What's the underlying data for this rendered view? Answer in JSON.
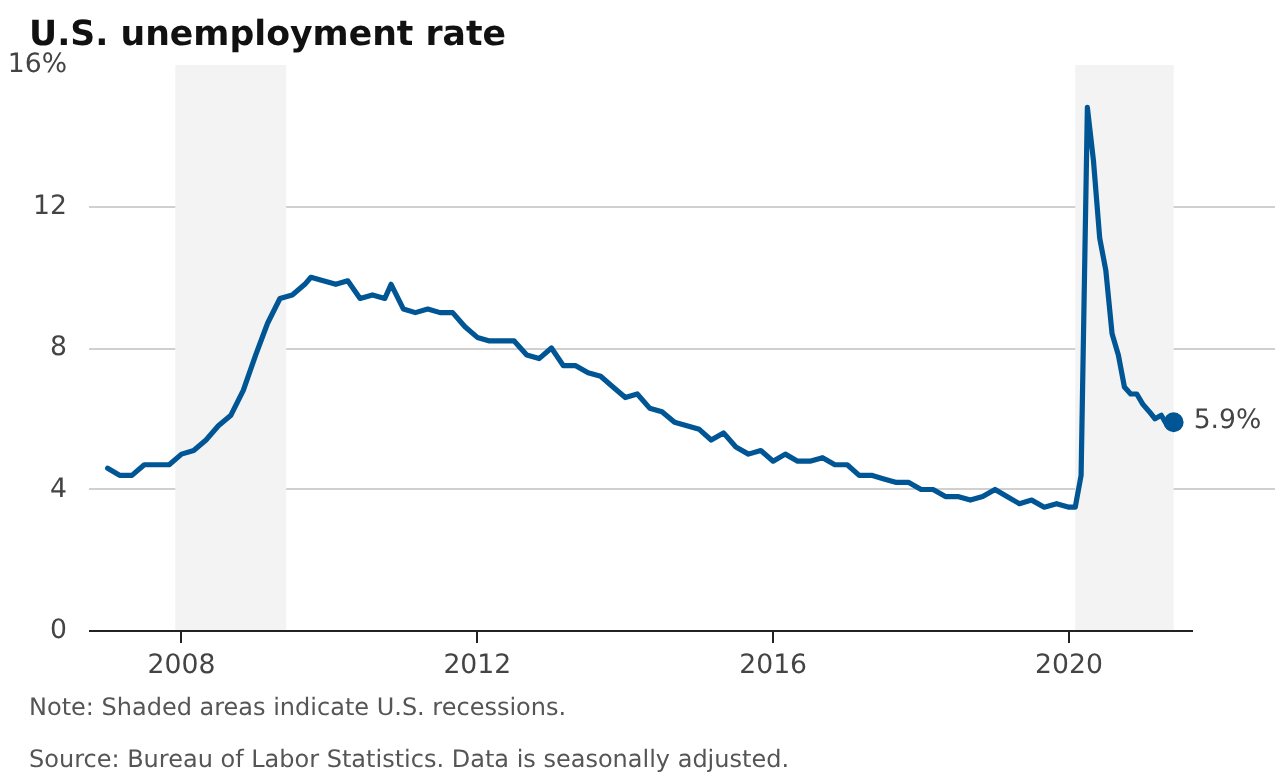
{
  "chart_data": {
    "type": "line",
    "title": "U.S. unemployment rate",
    "x": [
      "2007-01",
      "2007-03",
      "2007-05",
      "2007-07",
      "2007-09",
      "2007-11",
      "2008-01",
      "2008-03",
      "2008-05",
      "2008-07",
      "2008-09",
      "2008-11",
      "2009-01",
      "2009-03",
      "2009-05",
      "2009-07",
      "2009-09",
      "2009-10",
      "2009-12",
      "2010-02",
      "2010-04",
      "2010-06",
      "2010-08",
      "2010-10",
      "2010-11",
      "2011-01",
      "2011-03",
      "2011-05",
      "2011-07",
      "2011-09",
      "2011-11",
      "2012-01",
      "2012-03",
      "2012-05",
      "2012-07",
      "2012-09",
      "2012-11",
      "2013-01",
      "2013-03",
      "2013-05",
      "2013-07",
      "2013-09",
      "2013-11",
      "2014-01",
      "2014-03",
      "2014-05",
      "2014-07",
      "2014-09",
      "2014-11",
      "2015-01",
      "2015-03",
      "2015-05",
      "2015-07",
      "2015-09",
      "2015-11",
      "2016-01",
      "2016-03",
      "2016-05",
      "2016-07",
      "2016-09",
      "2016-11",
      "2017-01",
      "2017-03",
      "2017-05",
      "2017-07",
      "2017-09",
      "2017-11",
      "2018-01",
      "2018-03",
      "2018-05",
      "2018-07",
      "2018-09",
      "2018-11",
      "2019-01",
      "2019-03",
      "2019-05",
      "2019-07",
      "2019-09",
      "2019-11",
      "2020-01",
      "2020-02",
      "2020-03",
      "2020-04",
      "2020-05",
      "2020-06",
      "2020-07",
      "2020-08",
      "2020-09",
      "2020-10",
      "2020-11",
      "2020-12",
      "2021-01",
      "2021-02",
      "2021-03",
      "2021-04",
      "2021-05",
      "2021-06"
    ],
    "series": [
      {
        "color": "#005594",
        "values": [
          4.6,
          4.4,
          4.4,
          4.7,
          4.7,
          4.7,
          5.0,
          5.1,
          5.4,
          5.8,
          6.1,
          6.8,
          7.8,
          8.7,
          9.4,
          9.5,
          9.8,
          10.0,
          9.9,
          9.8,
          9.9,
          9.4,
          9.5,
          9.4,
          9.8,
          9.1,
          9.0,
          9.1,
          9.0,
          9.0,
          8.6,
          8.3,
          8.2,
          8.2,
          8.2,
          7.8,
          7.7,
          8.0,
          7.5,
          7.5,
          7.3,
          7.2,
          6.9,
          6.6,
          6.7,
          6.3,
          6.2,
          5.9,
          5.8,
          5.7,
          5.4,
          5.6,
          5.2,
          5.0,
          5.1,
          4.8,
          5.0,
          4.8,
          4.8,
          4.9,
          4.7,
          4.7,
          4.4,
          4.4,
          4.3,
          4.2,
          4.2,
          4.0,
          4.0,
          3.8,
          3.8,
          3.7,
          3.8,
          4.0,
          3.8,
          3.6,
          3.7,
          3.5,
          3.6,
          3.5,
          3.5,
          4.4,
          14.8,
          13.3,
          11.1,
          10.2,
          8.4,
          7.8,
          6.9,
          6.7,
          6.7,
          6.4,
          6.2,
          6.0,
          6.1,
          5.8,
          5.9
        ]
      }
    ],
    "xlim": [
      "2006-10",
      "2021-09"
    ],
    "xticks": [
      "2008",
      "2012",
      "2016",
      "2020"
    ],
    "ylim": [
      0,
      16
    ],
    "yticks": [
      0,
      4,
      8,
      12,
      {
        "value": 16,
        "label": "16%"
      }
    ],
    "grid": "y",
    "marker": "none",
    "line_style": "solid",
    "bands": [
      {
        "axis": "x",
        "from": "2007-12",
        "to": "2009-06",
        "color": "#f3f3f3"
      },
      {
        "axis": "x",
        "from": "2020-02",
        "to": "2021-06",
        "color": "#f3f3f3"
      }
    ],
    "annotations": [
      {
        "text": "5.9%",
        "x": "2021-06",
        "y": 5.9
      },
      "Note: Shaded areas indicate U.S. recessions.",
      "Source: Bureau of Labor Statistics. Data is seasonally adjusted."
    ]
  }
}
